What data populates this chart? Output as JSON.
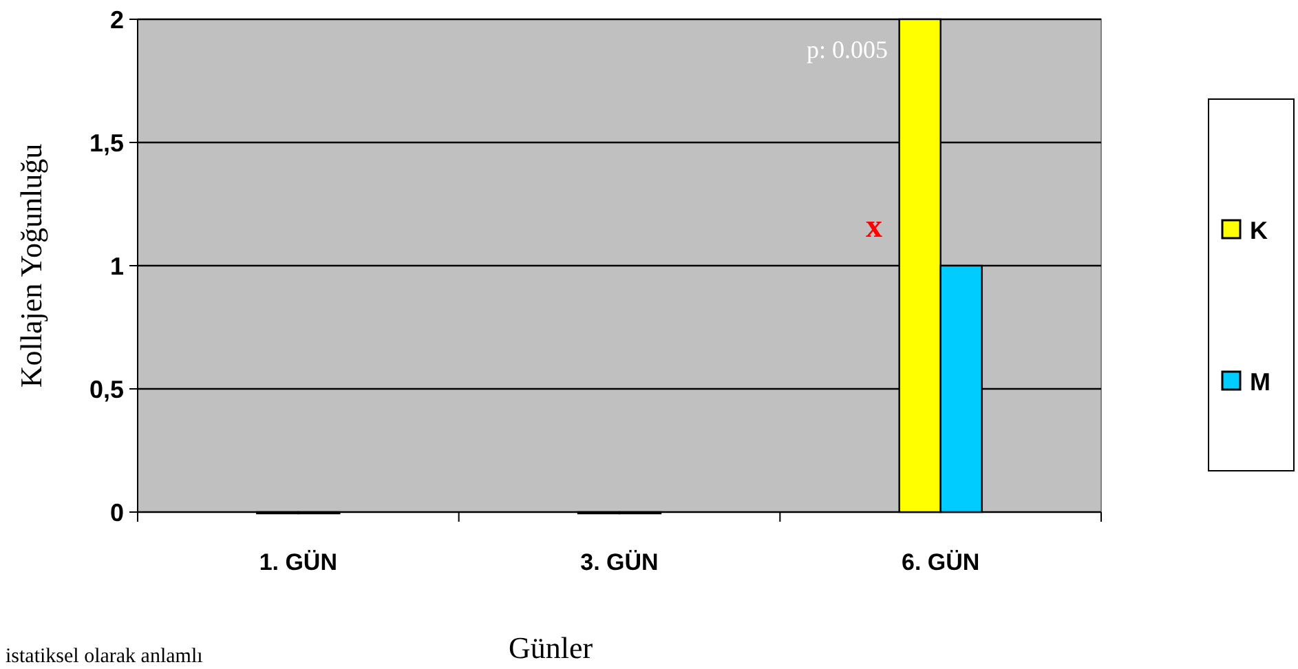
{
  "chart_data": {
    "type": "bar",
    "xlabel": "Günler",
    "ylabel": "Kollajen Yoğunluğu",
    "categories": [
      "1. GÜN",
      "3. GÜN",
      "6. GÜN"
    ],
    "series": [
      {
        "name": "K",
        "color": "#ffff00",
        "values": [
          0,
          0,
          2
        ]
      },
      {
        "name": "M",
        "color": "#00ccff",
        "values": [
          0,
          0,
          1
        ]
      }
    ],
    "ylim": [
      0,
      2
    ],
    "yticks": [
      0,
      {
        "value": 0.5,
        "label": "0,5"
      },
      1,
      {
        "value": 1.5,
        "label": "1,5"
      },
      2
    ],
    "grid": "y",
    "legend": "right",
    "annotations": [
      "p: 0.005",
      "x",
      "istatiksel olarak anlamlı"
    ]
  }
}
